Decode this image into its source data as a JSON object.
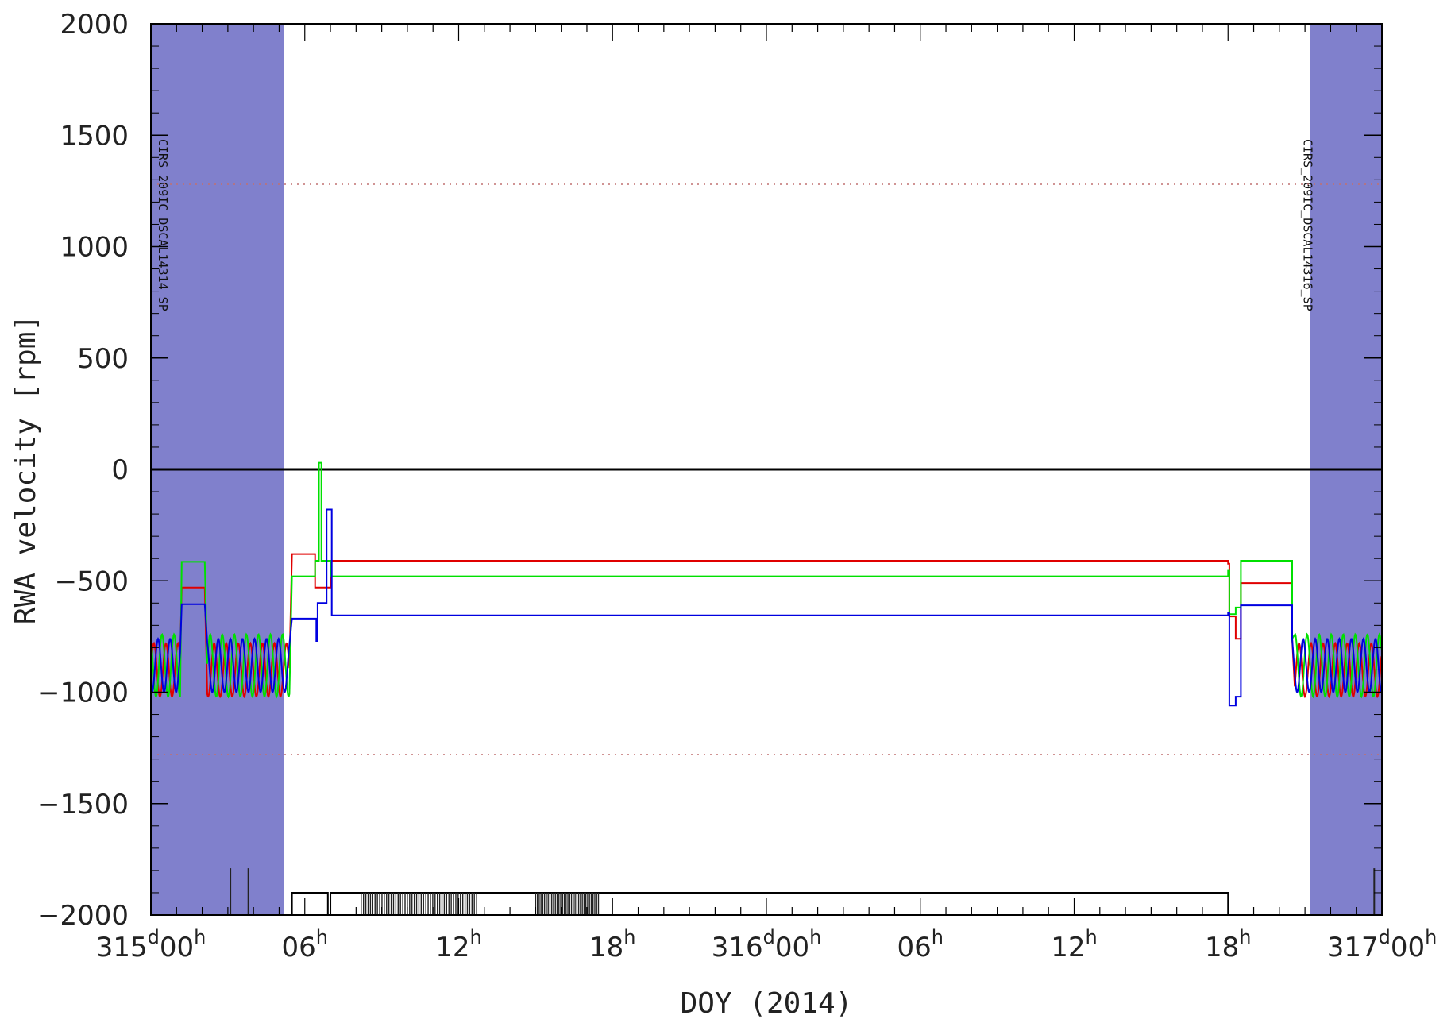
{
  "chart_data": {
    "type": "line",
    "xlabel": "DOY (2014)",
    "ylabel": "RWA velocity [rpm]",
    "xlim_hours": [
      0,
      48
    ],
    "ylim": [
      -2000,
      2000
    ],
    "y_ticks": [
      2000,
      1500,
      1000,
      500,
      0,
      -500,
      -1000,
      -1500,
      -2000
    ],
    "y_tick_labels": [
      "2000",
      "1500",
      "1000",
      "500",
      "0",
      "−5​00",
      "−1000",
      "−1500",
      "−2000"
    ],
    "x_ticks": [
      {
        "hour": 0,
        "main": "315",
        "sup1": "d",
        "main2": "00",
        "sup2": "h"
      },
      {
        "hour": 6,
        "main": "06",
        "sup1": "h",
        "main2": "",
        "sup2": ""
      },
      {
        "hour": 12,
        "main": "12",
        "sup1": "h",
        "main2": "",
        "sup2": ""
      },
      {
        "hour": 18,
        "main": "18",
        "sup1": "h",
        "main2": "",
        "sup2": ""
      },
      {
        "hour": 24,
        "main": "316",
        "sup1": "d",
        "main2": "00",
        "sup2": "h"
      },
      {
        "hour": 30,
        "main": "06",
        "sup1": "h",
        "main2": "",
        "sup2": ""
      },
      {
        "hour": 36,
        "main": "12",
        "sup1": "h",
        "main2": "",
        "sup2": ""
      },
      {
        "hour": 42,
        "main": "18",
        "sup1": "h",
        "main2": "",
        "sup2": ""
      },
      {
        "hour": 48,
        "main": "317",
        "sup1": "d",
        "main2": "00",
        "sup2": "h"
      }
    ],
    "limit_lines": [
      1280,
      -1280
    ],
    "shaded_bands": [
      {
        "start": 0,
        "end": 5.2,
        "label": "CIRS_209IC_DSCAL14314_SP"
      },
      {
        "start": 45.2,
        "end": 48,
        "label": "CIRS_209IC_DSCAL14316_SP"
      }
    ],
    "colors": {
      "band": "#8080cc",
      "red": "#e00000",
      "green": "#00e000",
      "blue": "#0000e0",
      "limit": "#c07070"
    },
    "series": [
      {
        "color": "red",
        "steps": [
          [
            5.5,
            -380
          ],
          [
            6.4,
            -530
          ],
          [
            6.6,
            -530
          ],
          [
            7.0,
            -410
          ],
          [
            42.0,
            -423
          ],
          [
            42.05,
            -660
          ],
          [
            42.3,
            -760
          ],
          [
            42.5,
            -510
          ],
          [
            44.3,
            -510
          ],
          [
            44.5,
            -760
          ]
        ],
        "osc_pre": {
          "mean": -900,
          "amp": 120
        },
        "plateau": [
          [
            1.2,
            -530
          ],
          [
            2.1,
            -530
          ]
        ]
      },
      {
        "color": "green",
        "steps": [
          [
            5.5,
            -480
          ],
          [
            6.4,
            -410
          ],
          [
            6.55,
            30
          ],
          [
            6.65,
            -410
          ],
          [
            7.0,
            -480
          ],
          [
            42.0,
            -455
          ],
          [
            42.05,
            -650
          ],
          [
            42.3,
            -620
          ],
          [
            42.5,
            -410
          ],
          [
            44.3,
            -410
          ],
          [
            44.5,
            -760
          ]
        ],
        "osc_pre": {
          "mean": -880,
          "amp": 140
        },
        "plateau": [
          [
            1.2,
            -415
          ],
          [
            2.1,
            -415
          ]
        ]
      },
      {
        "color": "blue",
        "steps": [
          [
            5.5,
            -670
          ],
          [
            6.4,
            -670
          ],
          [
            6.45,
            -770
          ],
          [
            6.5,
            -600
          ],
          [
            6.7,
            -600
          ],
          [
            6.85,
            -180
          ],
          [
            7.05,
            -655
          ],
          [
            42.0,
            -643
          ],
          [
            42.05,
            -1060
          ],
          [
            42.3,
            -1020
          ],
          [
            42.5,
            -610
          ],
          [
            44.3,
            -610
          ],
          [
            44.5,
            -760
          ]
        ],
        "osc_pre": {
          "mean": -880,
          "amp": 120
        },
        "plateau": [
          [
            1.2,
            -605
          ],
          [
            2.1,
            -605
          ]
        ]
      }
    ]
  }
}
